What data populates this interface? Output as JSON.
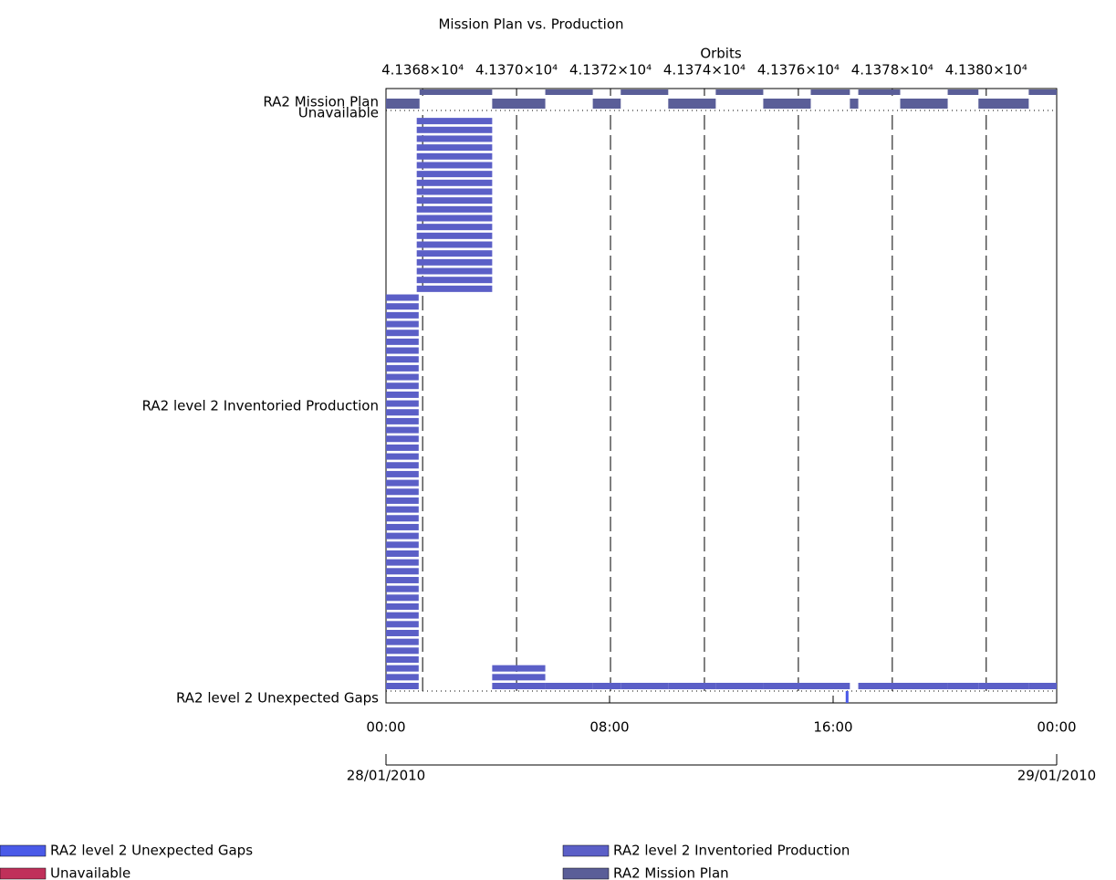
{
  "chart_data": {
    "type": "timeline",
    "title": "Mission Plan vs. Production",
    "x2_label": "Orbits",
    "xlim": [
      0,
      24
    ],
    "xticks": [
      {
        "value": 0,
        "label": "00:00"
      },
      {
        "value": 8,
        "label": "08:00"
      },
      {
        "value": 16,
        "label": "16:00"
      },
      {
        "value": 24,
        "label": "00:00"
      }
    ],
    "date_ticks": [
      {
        "value": 0,
        "label": "28/01/2010"
      },
      {
        "value": 24,
        "label": "29/01/2010"
      }
    ],
    "x2lim": [
      41367.22,
      41381.5
    ],
    "x2ticks": [
      {
        "value": 41368,
        "label": "4.1368×10⁴"
      },
      {
        "value": 41370,
        "label": "4.1370×10⁴"
      },
      {
        "value": 41372,
        "label": "4.1372×10⁴"
      },
      {
        "value": 41374,
        "label": "4.1374×10⁴"
      },
      {
        "value": 41376,
        "label": "4.1376×10⁴"
      },
      {
        "value": 41378,
        "label": "4.1378×10⁴"
      },
      {
        "value": 41380,
        "label": "4.1380×10⁴"
      }
    ],
    "series": [
      {
        "name": "RA2 level 2 Unexpected Gaps",
        "color": "#4a5ae8",
        "segments": [
          [
            16.45,
            16.55
          ]
        ]
      },
      {
        "name": "Unavailable",
        "color": "#c0305a",
        "segments": []
      },
      {
        "name": "RA2 level 2 Inventoried Production",
        "color": "#5b5fc7",
        "segments": [
          [
            0,
            1.17
          ],
          [
            0,
            1.17
          ],
          [
            0,
            1.17
          ],
          [
            0,
            1.17
          ],
          [
            0,
            1.17
          ],
          [
            0,
            1.17
          ],
          [
            0,
            1.17
          ],
          [
            0,
            1.17
          ],
          [
            0,
            1.17
          ],
          [
            0,
            1.17
          ],
          [
            0,
            1.17
          ],
          [
            0,
            1.17
          ],
          [
            0,
            1.17
          ],
          [
            0,
            1.17
          ],
          [
            0,
            1.17
          ],
          [
            0,
            1.17
          ],
          [
            0,
            1.17
          ],
          [
            0,
            1.17
          ],
          [
            0,
            1.17
          ],
          [
            0,
            1.17
          ],
          [
            0,
            1.17
          ],
          [
            0,
            1.17
          ],
          [
            0,
            1.17
          ],
          [
            0,
            1.17
          ],
          [
            0,
            1.17
          ],
          [
            0,
            1.17
          ],
          [
            0,
            1.17
          ],
          [
            0,
            1.17
          ],
          [
            0,
            1.17
          ],
          [
            0,
            1.17
          ],
          [
            0,
            1.17
          ],
          [
            0,
            1.17
          ],
          [
            0,
            1.17
          ],
          [
            0,
            1.17
          ],
          [
            0,
            1.17
          ],
          [
            0,
            1.17
          ],
          [
            0,
            1.17
          ],
          [
            0,
            1.17
          ],
          [
            0,
            1.17
          ],
          [
            0,
            1.17
          ],
          [
            0,
            1.17
          ],
          [
            0,
            1.17
          ],
          [
            0,
            1.17
          ],
          [
            0,
            1.17
          ],
          [
            0,
            1.17
          ],
          [
            1.1,
            3.8
          ],
          [
            1.1,
            3.8
          ],
          [
            1.1,
            3.8
          ],
          [
            1.1,
            3.8
          ],
          [
            1.1,
            3.8
          ],
          [
            1.1,
            3.8
          ],
          [
            1.1,
            3.8
          ],
          [
            1.1,
            3.8
          ],
          [
            1.1,
            3.8
          ],
          [
            1.1,
            3.8
          ],
          [
            1.1,
            3.8
          ],
          [
            1.1,
            3.8
          ],
          [
            1.1,
            3.8
          ],
          [
            1.1,
            3.8
          ],
          [
            1.1,
            3.8
          ],
          [
            1.1,
            3.8
          ],
          [
            1.1,
            3.8
          ],
          [
            1.1,
            3.8
          ],
          [
            1.1,
            3.8
          ],
          [
            1.1,
            3.8
          ],
          [
            3.8,
            5.7
          ],
          [
            3.8,
            5.7
          ],
          [
            3.8,
            5.7
          ],
          [
            5.7,
            7.4
          ],
          [
            7.4,
            8.4
          ],
          [
            8.4,
            10.1
          ],
          [
            10.1,
            11.8
          ],
          [
            11.8,
            13.5
          ],
          [
            13.5,
            15.2
          ],
          [
            15.2,
            16.6
          ],
          [
            16.9,
            18.4
          ],
          [
            18.4,
            20.1
          ],
          [
            20.1,
            21.2
          ],
          [
            21.2,
            23.0
          ],
          [
            23.0,
            24
          ]
        ]
      },
      {
        "name": "RA2 Mission Plan",
        "color": "#5a5e98",
        "segments": [
          [
            0,
            1.2
          ],
          [
            1.2,
            3.8
          ],
          [
            3.8,
            5.7
          ],
          [
            5.7,
            7.4
          ],
          [
            7.4,
            8.4
          ],
          [
            8.4,
            10.1
          ],
          [
            10.1,
            11.8
          ],
          [
            11.8,
            13.5
          ],
          [
            13.5,
            15.2
          ],
          [
            15.2,
            16.6
          ],
          [
            16.6,
            16.9
          ],
          [
            16.9,
            18.4
          ],
          [
            18.4,
            20.1
          ],
          [
            20.1,
            21.2
          ],
          [
            21.2,
            23.0
          ],
          [
            23.0,
            24
          ]
        ]
      }
    ]
  }
}
